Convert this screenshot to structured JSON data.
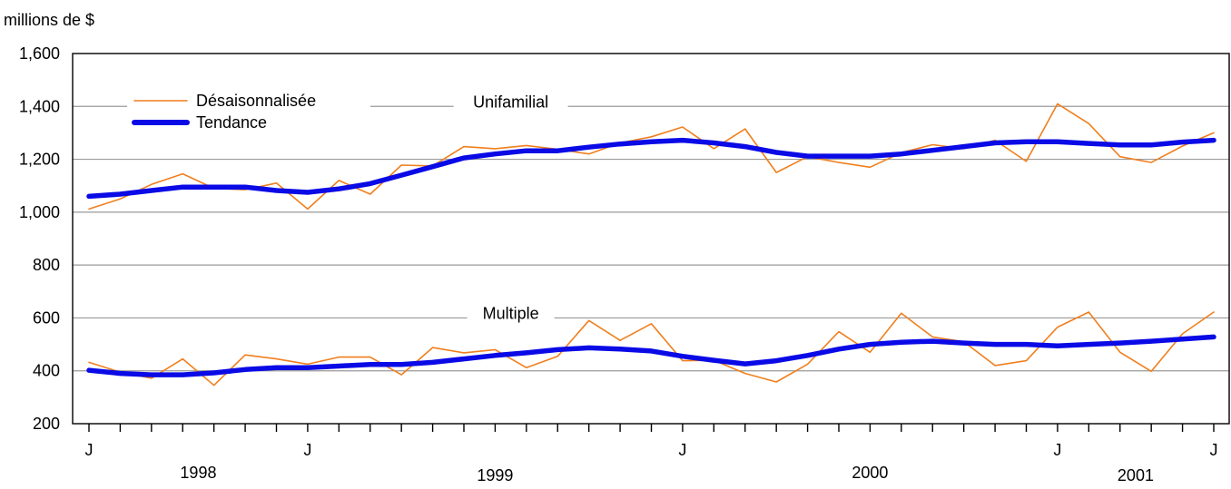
{
  "chart_data": {
    "type": "line",
    "ylabel": "millions de $",
    "ylim": [
      200,
      1600
    ],
    "y_ticks": [
      200,
      400,
      600,
      800,
      1000,
      1200,
      1400,
      1600
    ],
    "y_tick_labels": [
      "200",
      "400",
      "600",
      "800",
      "1,000",
      "1,200",
      "1,400",
      "1,600"
    ],
    "grid": true,
    "x_month_labels": [
      {
        "index": 0,
        "label": "J"
      },
      {
        "index": 7,
        "label": "J"
      },
      {
        "index": 19,
        "label": "J"
      },
      {
        "index": 31,
        "label": "J"
      },
      {
        "index": 36,
        "label": "J"
      }
    ],
    "x_year_labels": [
      {
        "label": "1998",
        "from": 0,
        "to": 7
      },
      {
        "label": "1999",
        "from": 7,
        "to": 19
      },
      {
        "label": "2000",
        "from": 19,
        "to": 31
      },
      {
        "label": "2001",
        "from": 31,
        "to": 36
      }
    ],
    "legend": {
      "position": "top-left",
      "entries": [
        {
          "label": "Désaisonnalisée",
          "color": "#F07F1E",
          "style": "thin"
        },
        {
          "label": "Tendance",
          "color": "#0A0AE6",
          "style": "thick"
        }
      ]
    },
    "groups": [
      {
        "label": "Unifamilial",
        "label_value": 1400,
        "label_index": 13.5,
        "series": [
          {
            "name": "Désaisonnalisée",
            "values": [
              1012,
              1050,
              1105,
              1145,
              1090,
              1085,
              1110,
              1012,
              1120,
              1068,
              1178,
              1175,
              1248,
              1240,
              1252,
              1238,
              1220,
              1262,
              1285,
              1322,
              1240,
              1315,
              1150,
              1210,
              1188,
              1170,
              1225,
              1255,
              1240,
              1272,
              1192,
              1410,
              1335,
              1210,
              1188,
              1250,
              1300
            ]
          },
          {
            "name": "Tendance",
            "values": [
              1060,
              1068,
              1082,
              1095,
              1095,
              1095,
              1082,
              1075,
              1088,
              1108,
              1140,
              1172,
              1205,
              1220,
              1232,
              1232,
              1246,
              1258,
              1266,
              1272,
              1262,
              1248,
              1226,
              1212,
              1212,
              1212,
              1220,
              1234,
              1248,
              1262,
              1266,
              1266,
              1260,
              1254,
              1254,
              1265,
              1272
            ]
          }
        ]
      },
      {
        "label": "Multiple",
        "label_value": 600,
        "label_index": 13.5,
        "series": [
          {
            "name": "Désaisonnalisée",
            "values": [
              432,
              395,
              372,
              445,
              345,
              460,
              445,
              425,
              452,
              452,
              385,
              488,
              468,
              480,
              412,
              455,
              590,
              515,
              578,
              438,
              440,
              390,
              358,
              425,
              548,
              470,
              618,
              528,
              510,
              420,
              438,
              565,
              622,
              470,
              398,
              540,
              622
            ]
          },
          {
            "name": "Tendance",
            "values": [
              402,
              390,
              385,
              385,
              392,
              405,
              412,
              412,
              418,
              424,
              424,
              432,
              445,
              458,
              468,
              480,
              487,
              482,
              475,
              455,
              440,
              426,
              438,
              458,
              482,
              500,
              508,
              512,
              505,
              500,
              500,
              494,
              500,
              505,
              512,
              520,
              528
            ]
          }
        ]
      }
    ]
  }
}
